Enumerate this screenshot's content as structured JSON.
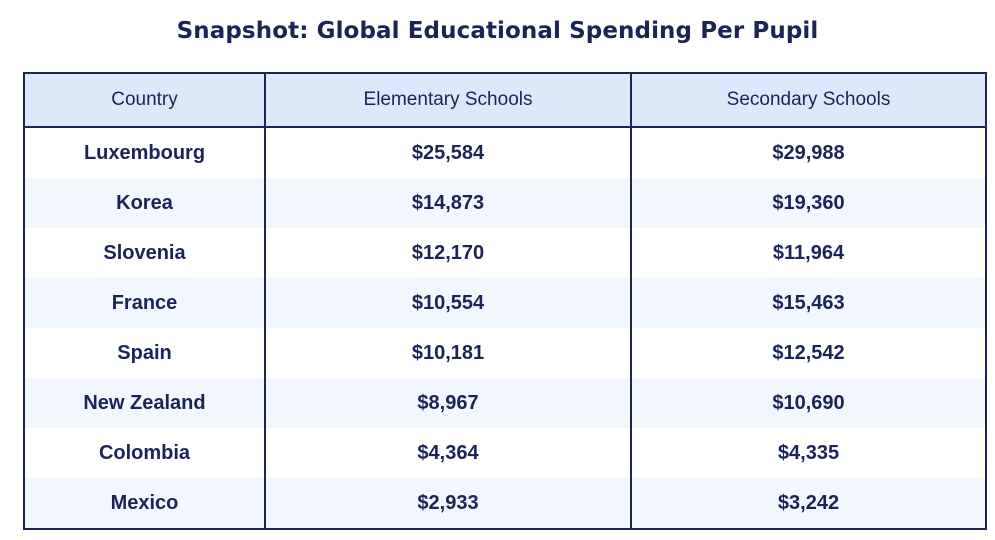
{
  "chart_data": {
    "type": "table",
    "title": "Snapshot: Global Educational Spending Per Pupil",
    "columns": [
      "Country",
      "Elementary Schools",
      "Secondary Schools"
    ],
    "rows": [
      {
        "country": "Luxembourg",
        "elementary": "$25,584",
        "secondary": "$29,988"
      },
      {
        "country": "Korea",
        "elementary": "$14,873",
        "secondary": "$19,360"
      },
      {
        "country": "Slovenia",
        "elementary": "$12,170",
        "secondary": "$11,964"
      },
      {
        "country": "France",
        "elementary": "$10,554",
        "secondary": "$15,463"
      },
      {
        "country": "Spain",
        "elementary": "$10,181",
        "secondary": "$12,542"
      },
      {
        "country": "New Zealand",
        "elementary": "$8,967",
        "secondary": "$10,690"
      },
      {
        "country": "Colombia",
        "elementary": "$4,364",
        "secondary": "$4,335"
      },
      {
        "country": "Mexico",
        "elementary": "$2,933",
        "secondary": "$3,242"
      }
    ]
  },
  "colors": {
    "text": "#1a2456",
    "header_bg": "#dde9fb",
    "stripe_bg": "#f2f6fd",
    "border": "#1a2456"
  }
}
